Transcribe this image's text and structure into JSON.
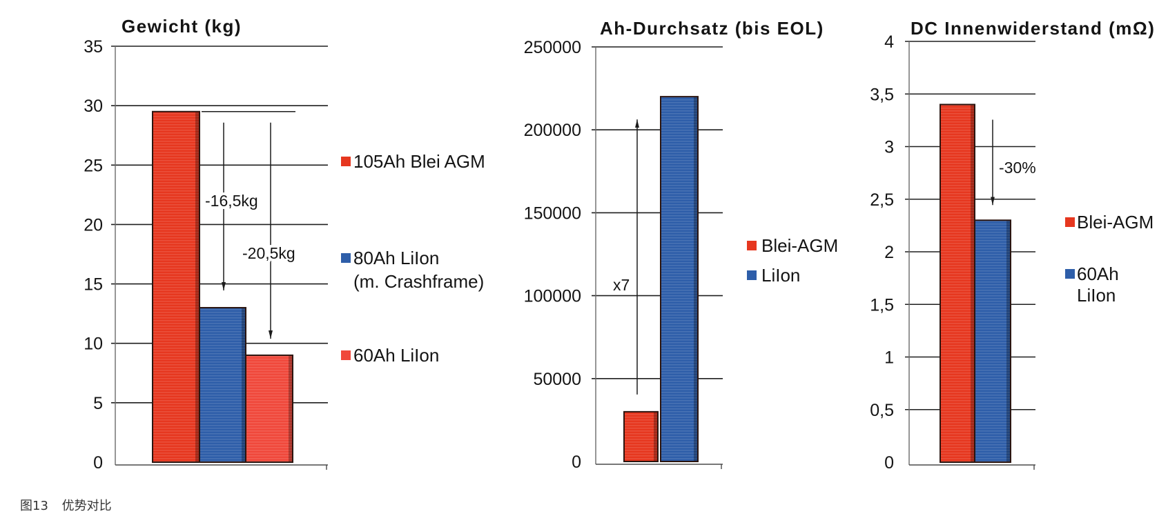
{
  "caption": "图13 优势对比",
  "chart_data": [
    {
      "type": "bar",
      "title": "Gewicht (kg)",
      "ylim": [
        0,
        35
      ],
      "yticks": [
        0,
        5,
        10,
        15,
        20,
        25,
        30,
        35
      ],
      "ytick_labels": [
        "0",
        "5",
        "10",
        "15",
        "20",
        "25",
        "30",
        "35"
      ],
      "grid": true,
      "legend_placement": "right",
      "bars": [
        {
          "legend": [
            "105Ah Blei AGM"
          ],
          "value": 29.5,
          "color": "#e6371f"
        },
        {
          "legend": [
            "80Ah LiIon",
            "(m. Crashframe)"
          ],
          "value": 13,
          "color": "#2e5ea9"
        },
        {
          "legend": [
            "60Ah LiIon"
          ],
          "value": 9,
          "color": "#f0483b"
        }
      ],
      "annotations": [
        {
          "text": "-16,5kg",
          "from_bar": 0,
          "to_bar": 1
        },
        {
          "text": "-20,5kg",
          "from_bar": 0,
          "to_bar": 2
        }
      ]
    },
    {
      "type": "bar",
      "title": "Ah-Durchsatz (bis EOL)",
      "ylim": [
        0,
        250000
      ],
      "yticks": [
        0,
        50000,
        100000,
        150000,
        200000,
        250000
      ],
      "ytick_labels": [
        "0",
        "50000",
        "100000",
        "150000",
        "200000",
        "250000"
      ],
      "grid": true,
      "legend_placement": "right",
      "bars": [
        {
          "legend": [
            "Blei-AGM"
          ],
          "value": 30000,
          "color": "#e6371f"
        },
        {
          "legend": [
            "LiIon"
          ],
          "value": 220000,
          "color": "#2e5ea9"
        }
      ],
      "annotations": [
        {
          "text": "x7",
          "from_bar": 0,
          "to_bar": 1
        }
      ]
    },
    {
      "type": "bar",
      "title": "DC Innenwiderstand (mΩ)",
      "ylim": [
        0,
        4
      ],
      "yticks": [
        0,
        0.5,
        1,
        1.5,
        2,
        2.5,
        3,
        3.5,
        4
      ],
      "ytick_labels": [
        "0",
        "0,5",
        "1",
        "1,5",
        "2",
        "2,5",
        "3",
        "3,5",
        "4"
      ],
      "grid": true,
      "legend_placement": "right",
      "bars": [
        {
          "legend": [
            "Blei-AGM"
          ],
          "value": 3.4,
          "color": "#e6371f"
        },
        {
          "legend": [
            "60Ah",
            "LiIon"
          ],
          "value": 2.3,
          "color": "#2e5ea9"
        }
      ],
      "annotations": [
        {
          "text": "-30%",
          "from_bar": 0,
          "to_bar": 1
        }
      ]
    }
  ]
}
